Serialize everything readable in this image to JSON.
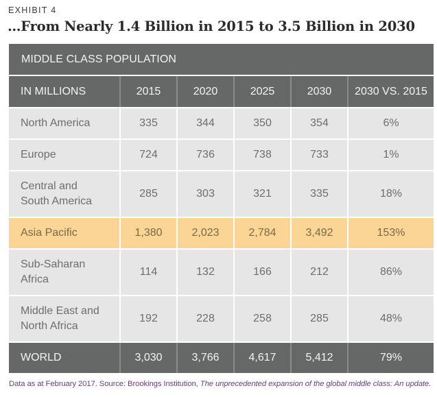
{
  "exhibit_label": "EXHIBIT 4",
  "title": "…From Nearly 1.4 Billion in 2015 to 3.5 Billion in 2030",
  "table": {
    "caption": "MIDDLE CLASS POPULATION",
    "columns": [
      "IN MILLIONS",
      "2015",
      "2020",
      "2025",
      "2030",
      "2030 VS. 2015"
    ],
    "rows": [
      {
        "region": "North America",
        "values": [
          "335",
          "344",
          "350",
          "354",
          "6%"
        ],
        "highlight": false,
        "lines": 1
      },
      {
        "region": "Europe",
        "values": [
          "724",
          "736",
          "738",
          "733",
          "1%"
        ],
        "highlight": false,
        "lines": 1
      },
      {
        "region_lines": [
          "Central and",
          "South America"
        ],
        "region": "Central and South America",
        "values": [
          "285",
          "303",
          "321",
          "335",
          "18%"
        ],
        "highlight": false,
        "lines": 2
      },
      {
        "region": "Asia Pacific",
        "values": [
          "1,380",
          "2,023",
          "2,784",
          "3,492",
          "153%"
        ],
        "highlight": true,
        "lines": 1
      },
      {
        "region_lines": [
          "Sub-Saharan",
          "Africa"
        ],
        "region": "Sub-Saharan Africa",
        "values": [
          "114",
          "132",
          "166",
          "212",
          "86%"
        ],
        "highlight": false,
        "lines": 2
      },
      {
        "region_lines": [
          "Middle East and",
          "North Africa"
        ],
        "region": "Middle East and North Africa",
        "values": [
          "192",
          "228",
          "258",
          "285",
          "48%"
        ],
        "highlight": false,
        "lines": 2
      }
    ],
    "total": {
      "region": "WORLD",
      "values": [
        "3,030",
        "3,766",
        "4,617",
        "5,412",
        "79%"
      ]
    },
    "colors": {
      "header_bg": "#666767",
      "cell_bg": "#e6e6e6",
      "highlight_bg": "#fbd595"
    }
  },
  "footnote": {
    "prefix": "Data as at February 2017. Source: Brookings Institution, ",
    "source_title": "The unprecedented expansion of the global middle class: An update."
  }
}
